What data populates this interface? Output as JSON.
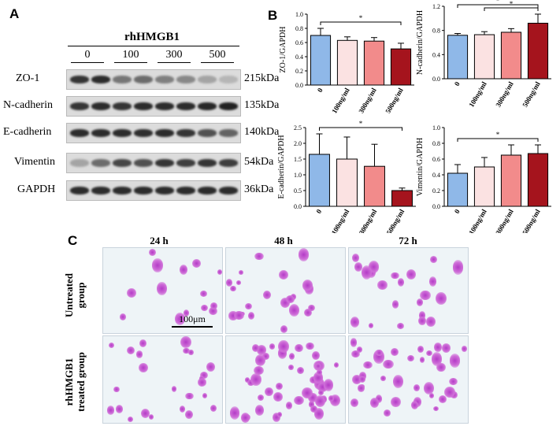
{
  "panels": {
    "a": "A",
    "b": "B",
    "c": "C"
  },
  "western": {
    "treatment": "rhHMGB1",
    "doses": [
      "0",
      "100",
      "300",
      "500"
    ],
    "rows": [
      {
        "name": "ZO-1",
        "kda": "215kDa"
      },
      {
        "name": "N-cadherin",
        "kda": "135kDa"
      },
      {
        "name": "E-cadherin",
        "kda": "140kDa"
      },
      {
        "name": "Vimentin",
        "kda": "54kDa"
      },
      {
        "name": "GAPDH",
        "kda": "36kDa"
      }
    ],
    "band_intensity": [
      [
        0.85,
        0.9,
        0.5,
        0.55,
        0.45,
        0.4,
        0.25,
        0.15
      ],
      [
        0.85,
        0.9,
        0.85,
        0.9,
        0.9,
        0.9,
        0.92,
        0.95
      ],
      [
        0.9,
        0.9,
        0.9,
        0.88,
        0.9,
        0.85,
        0.7,
        0.6
      ],
      [
        0.25,
        0.55,
        0.75,
        0.7,
        0.85,
        0.8,
        0.85,
        0.8
      ],
      [
        0.9,
        0.9,
        0.9,
        0.9,
        0.9,
        0.9,
        0.9,
        0.9
      ]
    ]
  },
  "chart_data": [
    {
      "type": "bar",
      "ylabel": "ZO-1/GAPDH",
      "categories": [
        "0",
        "100ng/ml",
        "300ng/ml",
        "500ng/ml"
      ],
      "values": [
        0.7,
        0.63,
        0.62,
        0.51
      ],
      "errors": [
        0.1,
        0.05,
        0.05,
        0.08
      ],
      "ylim": [
        0,
        1.0
      ],
      "yticks": [
        "0.0",
        "0.2",
        "0.4",
        "0.6",
        "0.8",
        "1.0"
      ],
      "colors": [
        "#8fb8e8",
        "#fbe2e2",
        "#f28b8b",
        "#a5141d"
      ],
      "sig": [
        {
          "from": 0,
          "to": 3,
          "label": "*"
        }
      ]
    },
    {
      "type": "bar",
      "ylabel": "N-cadherin/GAPDH",
      "categories": [
        "0",
        "100ng/ml",
        "300ng/ml",
        "500ng/ml"
      ],
      "values": [
        0.72,
        0.73,
        0.77,
        0.92
      ],
      "errors": [
        0.03,
        0.05,
        0.06,
        0.15
      ],
      "ylim": [
        0,
        1.2
      ],
      "yticks": [
        "0.0",
        "0.4",
        "0.8",
        "1.2"
      ],
      "colors": [
        "#8fb8e8",
        "#fbe2e2",
        "#f28b8b",
        "#a5141d"
      ],
      "sig": [
        {
          "from": 0,
          "to": 3,
          "label": "*"
        },
        {
          "from": 1,
          "to": 3,
          "label": "*"
        }
      ]
    },
    {
      "type": "bar",
      "ylabel": "E-cadherin/GAPDH",
      "categories": [
        "0",
        "100ng/ml",
        "300ng/ml",
        "500ng/ml"
      ],
      "values": [
        1.65,
        1.5,
        1.27,
        0.5
      ],
      "errors": [
        0.65,
        0.7,
        0.7,
        0.08
      ],
      "ylim": [
        0,
        2.5
      ],
      "yticks": [
        "0.0",
        "0.5",
        "1.0",
        "1.5",
        "2.0",
        "2.5"
      ],
      "colors": [
        "#8fb8e8",
        "#fbe2e2",
        "#f28b8b",
        "#a5141d"
      ],
      "sig": [
        {
          "from": 0,
          "to": 3,
          "label": "*"
        }
      ]
    },
    {
      "type": "bar",
      "ylabel": "Vimentin/GAPDH",
      "categories": [
        "0",
        "100ng/ml",
        "300ng/ml",
        "500ng/ml"
      ],
      "values": [
        0.42,
        0.5,
        0.65,
        0.67
      ],
      "errors": [
        0.11,
        0.12,
        0.13,
        0.11
      ],
      "ylim": [
        0,
        1.0
      ],
      "yticks": [
        "0.0",
        "0.2",
        "0.4",
        "0.6",
        "0.8",
        "1.0"
      ],
      "colors": [
        "#8fb8e8",
        "#fbe2e2",
        "#f28b8b",
        "#a5141d"
      ],
      "sig": [
        {
          "from": 0,
          "to": 3,
          "label": "*"
        }
      ]
    }
  ],
  "microscopy": {
    "times": [
      "24 h",
      "48 h",
      "72 h"
    ],
    "groups": [
      [
        "Untreated",
        "group"
      ],
      [
        "rhHMGB1",
        "treated group"
      ]
    ],
    "scale_bar": "100μm"
  }
}
